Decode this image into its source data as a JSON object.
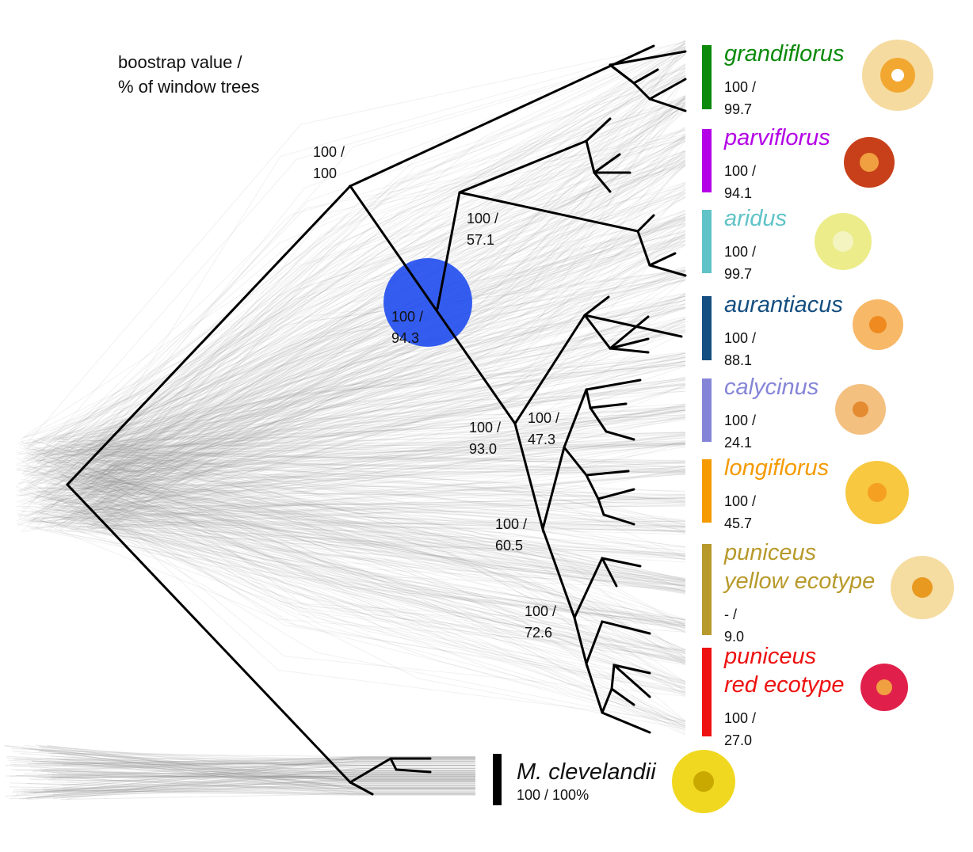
{
  "legend": {
    "lines": [
      "boostrap value /",
      "% of window trees"
    ]
  },
  "node_labels": [
    {
      "support": "100 /",
      "window": "100"
    },
    {
      "support": "100 /",
      "window": "57.1"
    },
    {
      "support": "100 /",
      "window": "94.3"
    },
    {
      "support": "100 /",
      "window": "93.0"
    },
    {
      "support": "100 /",
      "window": "47.3"
    },
    {
      "support": "100 /",
      "window": "60.5"
    },
    {
      "support": "100 /",
      "window": "72.6"
    }
  ],
  "clades": [
    {
      "name_lines": [
        "grandiflorus"
      ],
      "support": "100 /",
      "window": "99.7",
      "color": "#0b8a0b"
    },
    {
      "name_lines": [
        "parviflorus"
      ],
      "support": "100 /",
      "window": "94.1",
      "color": "#b400e6"
    },
    {
      "name_lines": [
        "aridus"
      ],
      "support": "100 /",
      "window": "99.7",
      "color": "#5fc3c8"
    },
    {
      "name_lines": [
        "aurantiacus"
      ],
      "support": "100 /",
      "window": "88.1",
      "color": "#154e80"
    },
    {
      "name_lines": [
        "calycinus"
      ],
      "support": "100 /",
      "window": "24.1",
      "color": "#8585d8"
    },
    {
      "name_lines": [
        "longiflorus"
      ],
      "support": "100 /",
      "window": "45.7",
      "color": "#f59a00"
    },
    {
      "name_lines": [
        "puniceus",
        "yellow ecotype"
      ],
      "support": "- /",
      "window": "9.0",
      "color": "#b89a2c"
    },
    {
      "name_lines": [
        "puniceus",
        "red ecotype"
      ],
      "support": "100 /",
      "window": "27.0",
      "color": "#ee1111"
    }
  ],
  "outgroup": {
    "name": "M. clevelandii",
    "label": "100 / 100%",
    "color": "#000000"
  }
}
